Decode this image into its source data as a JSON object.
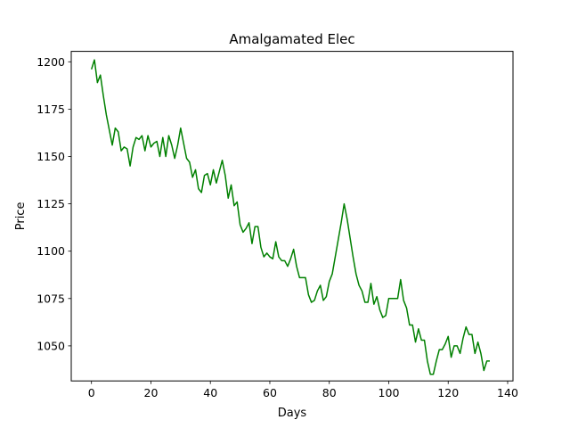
{
  "chart_data": {
    "type": "line",
    "title": "Amalgamated Elec",
    "xlabel": "Days",
    "ylabel": "Price",
    "xlim": [
      -6.8,
      141.8
    ],
    "ylim": [
      1031.5,
      1205.5
    ],
    "xticks": [
      0,
      20,
      40,
      60,
      80,
      100,
      120,
      140
    ],
    "yticks": [
      1050,
      1075,
      1100,
      1125,
      1150,
      1175,
      1200
    ],
    "grid": false,
    "legend": "none",
    "series": [
      {
        "color": "#008000",
        "x": [
          0,
          1,
          2,
          3,
          4,
          5,
          6,
          7,
          8,
          9,
          10,
          11,
          12,
          13,
          14,
          15,
          16,
          17,
          18,
          19,
          20,
          21,
          22,
          23,
          24,
          25,
          26,
          27,
          28,
          29,
          30,
          31,
          32,
          33,
          34,
          35,
          36,
          37,
          38,
          39,
          40,
          41,
          42,
          43,
          44,
          45,
          46,
          47,
          48,
          49,
          50,
          51,
          52,
          53,
          54,
          55,
          56,
          57,
          58,
          59,
          60,
          61,
          62,
          63,
          64,
          65,
          66,
          67,
          68,
          69,
          70,
          71,
          72,
          73,
          74,
          75,
          76,
          77,
          78,
          79,
          80,
          81,
          82,
          83,
          84,
          85,
          86,
          87,
          88,
          89,
          90,
          91,
          92,
          93,
          94,
          95,
          96,
          97,
          98,
          99,
          100,
          101,
          102,
          103,
          104,
          105,
          106,
          107,
          108,
          109,
          110,
          111,
          112,
          113,
          114,
          115,
          116,
          117,
          118,
          119,
          120,
          121,
          122,
          123,
          124,
          125,
          126,
          127,
          128,
          129,
          130,
          131,
          132,
          133,
          134
        ],
        "values": [
          1196,
          1201,
          1189,
          1193,
          1182,
          1172,
          1164,
          1156,
          1165,
          1163,
          1153,
          1155,
          1154,
          1145,
          1155,
          1160,
          1159,
          1161,
          1153,
          1161,
          1155,
          1157,
          1158,
          1150,
          1160,
          1150,
          1161,
          1156,
          1149,
          1156,
          1165,
          1157,
          1149,
          1147,
          1139,
          1143,
          1133,
          1131,
          1140,
          1141,
          1135,
          1143,
          1136,
          1142,
          1148,
          1140,
          1128,
          1135,
          1124,
          1126,
          1114,
          1110,
          1112,
          1115,
          1104,
          1113,
          1113,
          1102,
          1097,
          1099,
          1097,
          1096,
          1105,
          1097,
          1095,
          1095,
          1092,
          1096,
          1101,
          1092,
          1086,
          1086,
          1086,
          1077,
          1073,
          1074,
          1079,
          1082,
          1074,
          1076,
          1084,
          1088,
          1097,
          1106,
          1115,
          1125,
          1117,
          1107,
          1097,
          1088,
          1082,
          1079,
          1073,
          1073,
          1083,
          1072,
          1076,
          1069,
          1065,
          1066,
          1075,
          1075,
          1075,
          1075,
          1085,
          1074,
          1070,
          1061,
          1061,
          1052,
          1059,
          1053,
          1053,
          1042,
          1035,
          1035,
          1042,
          1048,
          1048,
          1051,
          1055,
          1044,
          1050,
          1050,
          1046,
          1054,
          1060,
          1056,
          1056,
          1046,
          1052,
          1046,
          1037,
          1042,
          1042
        ]
      }
    ]
  }
}
